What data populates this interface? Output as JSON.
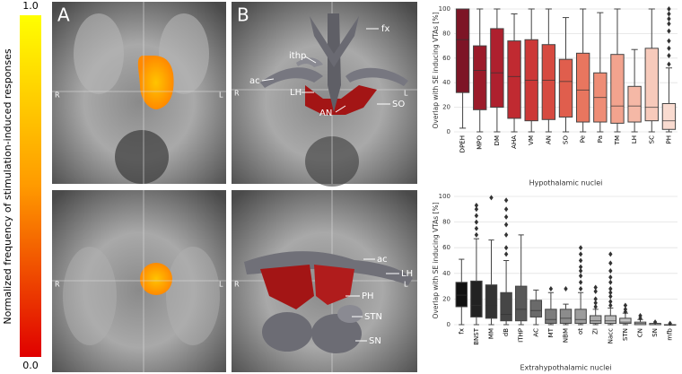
{
  "figure": {
    "colorbar": {
      "label": "Normalized frequency of stimulation-induced responses",
      "lim": [
        0,
        1
      ],
      "ticks": [
        {
          "value": 1,
          "label": "1.0"
        },
        {
          "value": 0,
          "label": "0.0"
        }
      ]
    },
    "panels": [
      {
        "label": "A",
        "left": "R",
        "right": "L"
      },
      {
        "label": "B",
        "left": "R",
        "right": "L",
        "structures": [
          "fx",
          "ithp",
          "ac",
          "LH",
          "SO",
          "AN"
        ]
      },
      {
        "left": "R",
        "right": "L"
      },
      {
        "left": "R",
        "right": "L",
        "structures": [
          "ac",
          "LH",
          "PH",
          "STN",
          "SN"
        ]
      }
    ]
  },
  "chart_data": [
    {
      "type": "box",
      "x_label": "Hypothalamic nuclei",
      "y_label": "Overlap with SE inducing VTAs [%]",
      "ylim": [
        0,
        100
      ],
      "yticks": [
        0,
        20,
        40,
        60,
        80,
        100
      ],
      "grid": true,
      "categories": [
        "DPEH",
        "MPO",
        "DM",
        "AHA",
        "VM",
        "AN",
        "SO",
        "Pe",
        "Pa",
        "TM",
        "LH",
        "SC",
        "PH"
      ],
      "colors": [
        "#7d1526",
        "#9b1b2a",
        "#ae202e",
        "#c02a31",
        "#cc3837",
        "#d64a40",
        "#e05e4d",
        "#e8765f",
        "#ee8d76",
        "#f2a38e",
        "#f5b8a6",
        "#f7cabb",
        "#f9dbd0"
      ],
      "boxes": [
        {
          "whislo": 3,
          "q1": 32,
          "med": 75,
          "q3": 100,
          "whishi": 100,
          "fliers": []
        },
        {
          "whislo": 0,
          "q1": 18,
          "med": 50,
          "q3": 70,
          "whishi": 100,
          "fliers": []
        },
        {
          "whislo": 0,
          "q1": 20,
          "med": 48,
          "q3": 84,
          "whishi": 100,
          "fliers": []
        },
        {
          "whislo": 0,
          "q1": 11,
          "med": 45,
          "q3": 74,
          "whishi": 96,
          "fliers": []
        },
        {
          "whislo": 0,
          "q1": 9,
          "med": 42,
          "q3": 75,
          "whishi": 100,
          "fliers": []
        },
        {
          "whislo": 0,
          "q1": 10,
          "med": 42,
          "q3": 71,
          "whishi": 100,
          "fliers": []
        },
        {
          "whislo": 0,
          "q1": 12,
          "med": 41,
          "q3": 59,
          "whishi": 93,
          "fliers": []
        },
        {
          "whislo": 0,
          "q1": 8,
          "med": 34,
          "q3": 64,
          "whishi": 100,
          "fliers": []
        },
        {
          "whislo": 0,
          "q1": 8,
          "med": 28,
          "q3": 48,
          "whishi": 97,
          "fliers": []
        },
        {
          "whislo": 0,
          "q1": 7,
          "med": 21,
          "q3": 63,
          "whishi": 100,
          "fliers": []
        },
        {
          "whislo": 0,
          "q1": 8,
          "med": 21,
          "q3": 37,
          "whishi": 67,
          "fliers": []
        },
        {
          "whislo": 0,
          "q1": 9,
          "med": 20,
          "q3": 68,
          "whishi": 100,
          "fliers": []
        },
        {
          "whislo": 0,
          "q1": 2,
          "med": 9,
          "q3": 23,
          "whishi": 52,
          "fliers": [
            55,
            62,
            68,
            74,
            82,
            88,
            92,
            96,
            100
          ]
        }
      ]
    },
    {
      "type": "box",
      "x_label": "Extrahypothalamic nuclei",
      "y_label": "Overlap with SE inducing VTAs [%]",
      "ylim": [
        0,
        100
      ],
      "yticks": [
        0,
        20,
        40,
        60,
        80,
        100
      ],
      "grid": true,
      "categories": [
        "fx",
        "BNST",
        "MM",
        "dB",
        "ITHP",
        "AC",
        "MT",
        "NBM",
        "ot",
        "ZI",
        "Nacc",
        "STN",
        "CN",
        "SN",
        "mfb"
      ],
      "colors": [
        "#111111",
        "#222222",
        "#333333",
        "#464646",
        "#585858",
        "#6a6a6a",
        "#7c7c7c",
        "#8c8c8c",
        "#9c9c9c",
        "#aaaaaa",
        "#b8b8b8",
        "#c4c4c4",
        "#d0d0d0",
        "#dbdbdb",
        "#e5e5e5"
      ],
      "boxes": [
        {
          "whislo": 0,
          "q1": 14,
          "med": 23,
          "q3": 33,
          "whishi": 51,
          "fliers": []
        },
        {
          "whislo": 0,
          "q1": 6,
          "med": 15,
          "q3": 34,
          "whishi": 67,
          "fliers": [
            70,
            75,
            80,
            85,
            90,
            93
          ]
        },
        {
          "whislo": 0,
          "q1": 5,
          "med": 15,
          "q3": 31,
          "whishi": 66,
          "fliers": [
            99
          ]
        },
        {
          "whislo": 0,
          "q1": 3,
          "med": 8,
          "q3": 25,
          "whishi": 50,
          "fliers": [
            55,
            60,
            70,
            78,
            84,
            90,
            97
          ]
        },
        {
          "whislo": 0,
          "q1": 3,
          "med": 12,
          "q3": 30,
          "whishi": 70,
          "fliers": []
        },
        {
          "whislo": 0,
          "q1": 6,
          "med": 11,
          "q3": 19,
          "whishi": 27,
          "fliers": []
        },
        {
          "whislo": 0,
          "q1": 1,
          "med": 4,
          "q3": 12,
          "whishi": 25,
          "fliers": [
            28
          ]
        },
        {
          "whislo": 0,
          "q1": 1,
          "med": 5,
          "q3": 12,
          "whishi": 16,
          "fliers": [
            28
          ]
        },
        {
          "whislo": 0,
          "q1": 1,
          "med": 4,
          "q3": 12,
          "whishi": 25,
          "fliers": [
            28,
            33,
            38,
            42,
            45,
            50,
            55,
            60
          ]
        },
        {
          "whislo": 0,
          "q1": 1,
          "med": 3,
          "q3": 7,
          "whishi": 12,
          "fliers": [
            14,
            17,
            20,
            26,
            29
          ]
        },
        {
          "whislo": 0,
          "q1": 1,
          "med": 3,
          "q3": 7,
          "whishi": 13,
          "fliers": [
            15,
            18,
            22,
            25,
            28,
            33,
            37,
            42,
            48,
            55
          ]
        },
        {
          "whislo": 0,
          "q1": 1,
          "med": 2,
          "q3": 5,
          "whishi": 9,
          "fliers": [
            10,
            12,
            15
          ]
        },
        {
          "whislo": 0,
          "q1": 0,
          "med": 1,
          "q3": 2,
          "whishi": 4,
          "fliers": [
            5,
            7
          ]
        },
        {
          "whislo": 0,
          "q1": 0,
          "med": 0,
          "q3": 1,
          "whishi": 1,
          "fliers": [
            2
          ]
        },
        {
          "whislo": 0,
          "q1": 0,
          "med": 0,
          "q3": 0,
          "whishi": 0,
          "fliers": [
            1
          ]
        }
      ]
    }
  ]
}
